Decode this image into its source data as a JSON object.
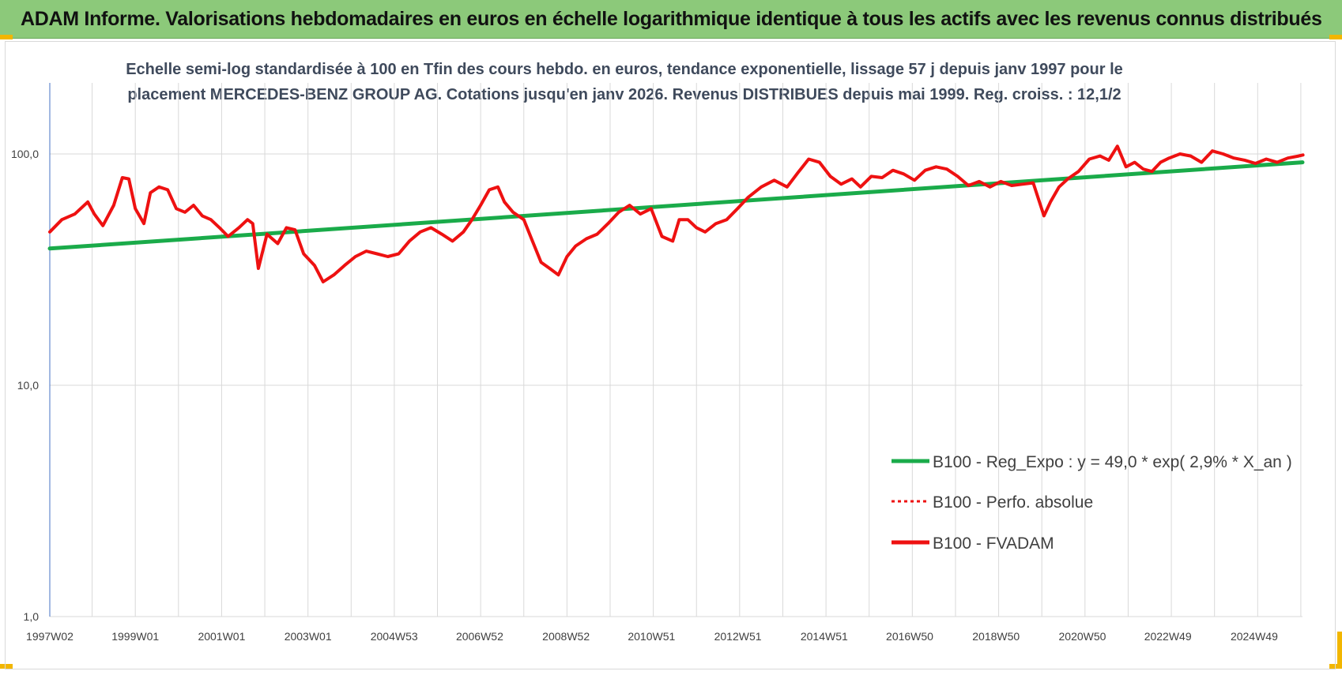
{
  "banner": {
    "title": "ADAM Informe. Valorisations hebdomadaires en euros en échelle logarithmique identique à tous les actifs avec les revenus connus distribués"
  },
  "colors": {
    "banner_bg": "#8cc97a",
    "corner_marks": "#f2b600",
    "trend": "#1aab4a",
    "series": "#ee1111",
    "grid": "#d9d9d9"
  },
  "chart_data": {
    "type": "line",
    "title_lines": [
      "Echelle semi-log standardisée à 100 en Tfin des cours hebdo. en euros, tendance exponentielle, lissage 57 j depuis janv 1997 pour le",
      "placement MERCEDES-BENZ GROUP AG. Cotations jusqu'en janv 2026. Revenus DISTRIBUES depuis mai 1999. Reg. croiss. : 12,1/2"
    ],
    "y_scale": "log",
    "ylim": [
      1,
      200
    ],
    "y_ticks": [
      "1,0",
      "10,0",
      "100,0"
    ],
    "x_range": [
      "1997W02",
      "2026W03"
    ],
    "x_ticks": [
      "1997W02",
      "1999W01",
      "2001W01",
      "2003W01",
      "2004W53",
      "2006W52",
      "2008W52",
      "2010W51",
      "2012W51",
      "2014W51",
      "2016W50",
      "2018W50",
      "2020W50",
      "2022W49",
      "2024W49"
    ],
    "grid": "vertical and horizontal major lines",
    "legend_position": "lower-right",
    "series": [
      {
        "name": "B100 - Reg_Expo : y = 49,0 * exp( 2,9% *  X_an )",
        "style": "solid-green",
        "x": [
          "1997W02",
          "2026W03"
        ],
        "y": [
          39,
          92
        ]
      },
      {
        "name": "B100 - Perfo. absolue",
        "style": "dotted-red",
        "x": [],
        "y": []
      },
      {
        "name": "B100 - FVADAM",
        "style": "solid-red",
        "x": [
          1997.02,
          1997.3,
          1997.6,
          1997.9,
          1998.05,
          1998.25,
          1998.5,
          1998.7,
          1998.85,
          1999.0,
          1999.2,
          1999.35,
          1999.55,
          1999.75,
          1999.95,
          2000.15,
          2000.35,
          2000.55,
          2000.75,
          2000.95,
          2001.15,
          2001.4,
          2001.6,
          2001.72,
          2001.85,
          2002.05,
          2002.3,
          2002.5,
          2002.7,
          2002.9,
          2003.15,
          2003.35,
          2003.6,
          2003.85,
          2004.1,
          2004.35,
          2004.6,
          2004.85,
          2005.1,
          2005.35,
          2005.6,
          2005.85,
          2006.1,
          2006.35,
          2006.6,
          2006.8,
          2007.0,
          2007.2,
          2007.4,
          2007.55,
          2007.75,
          2008.0,
          2008.2,
          2008.4,
          2008.6,
          2008.8,
          2009.0,
          2009.2,
          2009.45,
          2009.7,
          2009.95,
          2010.2,
          2010.45,
          2010.7,
          2010.95,
          2011.2,
          2011.45,
          2011.6,
          2011.8,
          2012.0,
          2012.2,
          2012.45,
          2012.7,
          2012.95,
          2013.2,
          2013.5,
          2013.8,
          2014.1,
          2014.35,
          2014.6,
          2014.85,
          2015.1,
          2015.35,
          2015.6,
          2015.8,
          2016.05,
          2016.3,
          2016.55,
          2016.8,
          2017.05,
          2017.3,
          2017.55,
          2017.8,
          2018.05,
          2018.3,
          2018.55,
          2018.8,
          2019.05,
          2019.3,
          2019.55,
          2019.8,
          2020.05,
          2020.2,
          2020.4,
          2020.6,
          2020.85,
          2021.1,
          2021.35,
          2021.55,
          2021.75,
          2021.95,
          2022.15,
          2022.35,
          2022.55,
          2022.75,
          2022.95,
          2023.2,
          2023.45,
          2023.7,
          2023.95,
          2024.2,
          2024.45,
          2024.7,
          2024.95,
          2025.2,
          2025.45,
          2025.7,
          2025.95,
          2026.05
        ],
        "y": [
          46,
          52,
          55,
          62,
          55,
          49,
          60,
          79,
          78,
          58,
          50,
          68,
          72,
          70,
          58,
          56,
          60,
          54,
          52,
          48,
          44,
          48,
          52,
          50,
          32,
          45,
          41,
          48,
          47,
          37,
          33,
          28,
          30,
          33,
          36,
          38,
          37,
          36,
          37,
          42,
          46,
          48,
          45,
          42,
          46,
          52,
          60,
          70,
          72,
          62,
          56,
          52,
          42,
          34,
          32,
          30,
          36,
          40,
          43,
          45,
          50,
          56,
          60,
          55,
          58,
          44,
          42,
          52,
          52,
          48,
          46,
          50,
          52,
          58,
          65,
          72,
          77,
          72,
          83,
          95,
          92,
          80,
          74,
          78,
          72,
          80,
          79,
          85,
          82,
          77,
          85,
          88,
          86,
          80,
          73,
          76,
          72,
          76,
          73,
          74,
          75,
          54,
          62,
          72,
          78,
          84,
          95,
          98,
          94,
          108,
          88,
          92,
          86,
          84,
          92,
          96,
          100,
          98,
          92,
          103,
          100,
          96,
          94,
          91,
          95,
          92,
          96,
          98,
          99
        ]
      }
    ]
  }
}
